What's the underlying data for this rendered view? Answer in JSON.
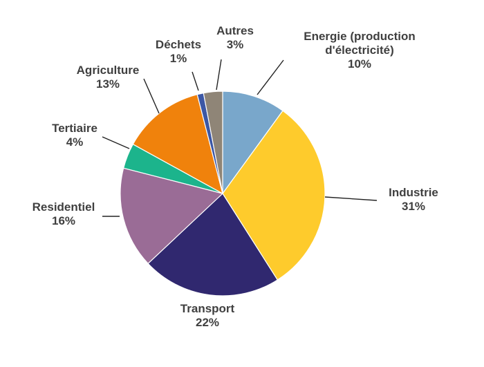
{
  "chart_data": {
    "type": "pie",
    "title": "",
    "start_angle_deg": 0,
    "direction": "clockwise",
    "slices": [
      {
        "label": "Energie  (production d'électricité)",
        "label_lines": [
          "Energie  (production",
          "d'électricité)"
        ],
        "value": 10,
        "value_label": "10%",
        "color": "#79a7cb"
      },
      {
        "label": "Industrie",
        "label_lines": [
          "Industrie"
        ],
        "value": 31,
        "value_label": "31%",
        "color": "#fecb2c"
      },
      {
        "label": "Transport",
        "label_lines": [
          "Transport"
        ],
        "value": 22,
        "value_label": "22%",
        "color": "#30286f"
      },
      {
        "label": "Residentiel",
        "label_lines": [
          "Residentiel"
        ],
        "value": 16,
        "value_label": "16%",
        "color": "#9a6c96"
      },
      {
        "label": "Tertiaire",
        "label_lines": [
          "Tertiaire"
        ],
        "value": 4,
        "value_label": "4%",
        "color": "#1cb48c"
      },
      {
        "label": "Agriculture",
        "label_lines": [
          "Agriculture"
        ],
        "value": 13,
        "value_label": "13%",
        "color": "#f0820c"
      },
      {
        "label": "Déchets",
        "label_lines": [
          "Déchets"
        ],
        "value": 1,
        "value_label": "1%",
        "color": "#3c57a5"
      },
      {
        "label": "Autres",
        "label_lines": [
          "Autres"
        ],
        "value": 3,
        "value_label": "3%",
        "color": "#8f8577"
      }
    ],
    "legend": "none"
  }
}
